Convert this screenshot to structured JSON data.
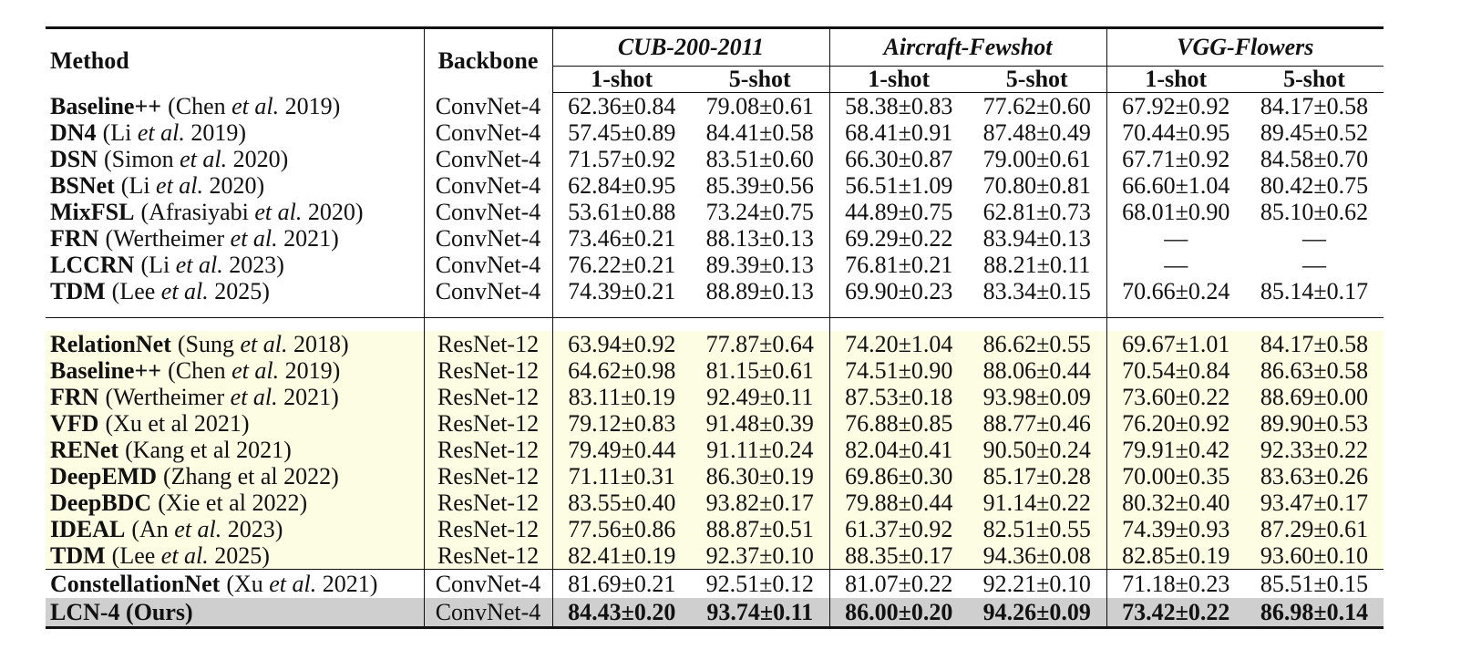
{
  "table": {
    "header": {
      "method": "Method",
      "backbone": "Backbone",
      "datasets": [
        {
          "name": "CUB-200-2011",
          "shots": [
            "1-shot",
            "5-shot"
          ]
        },
        {
          "name": "Aircraft-Fewshot",
          "shots": [
            "1-shot",
            "5-shot"
          ]
        },
        {
          "name": "VGG-Flowers",
          "shots": [
            "1-shot",
            "5-shot"
          ]
        }
      ]
    },
    "groups": [
      {
        "rows": [
          {
            "name": "Baseline++",
            "cite": [
              "(Chen ",
              "et al.",
              " 2019)"
            ],
            "backbone": "ConvNet-4",
            "values": [
              "62.36±0.84",
              "79.08±0.61",
              "58.38±0.83",
              "77.62±0.60",
              "67.92±0.92",
              "84.17±0.58"
            ]
          },
          {
            "name": "DN4",
            "cite": [
              "(Li ",
              "et al.",
              " 2019)"
            ],
            "backbone": "ConvNet-4",
            "values": [
              "57.45±0.89",
              "84.41±0.58",
              "68.41±0.91",
              "87.48±0.49",
              "70.44±0.95",
              "89.45±0.52"
            ]
          },
          {
            "name": "DSN",
            "cite": [
              "(Simon ",
              "et al.",
              " 2020)"
            ],
            "backbone": "ConvNet-4",
            "values": [
              "71.57±0.92",
              "83.51±0.60",
              "66.30±0.87",
              "79.00±0.61",
              "67.71±0.92",
              "84.58±0.70"
            ]
          },
          {
            "name": "BSNet",
            "cite": [
              "(Li ",
              "et al.",
              " 2020)"
            ],
            "backbone": "ConvNet-4",
            "values": [
              "62.84±0.95",
              "85.39±0.56",
              "56.51±1.09",
              "70.80±0.81",
              "66.60±1.04",
              "80.42±0.75"
            ]
          },
          {
            "name": "MixFSL",
            "cite": [
              "(Afrasiyabi ",
              "et al.",
              " 2020)"
            ],
            "backbone": "ConvNet-4",
            "values": [
              "53.61±0.88",
              "73.24±0.75",
              "44.89±0.75",
              "62.81±0.73",
              "68.01±0.90",
              "85.10±0.62"
            ]
          },
          {
            "name": "FRN",
            "cite": [
              "(Wertheimer ",
              "et al.",
              " 2021)"
            ],
            "backbone": "ConvNet-4",
            "values": [
              "73.46±0.21",
              "88.13±0.13",
              "69.29±0.22",
              "83.94±0.13",
              "—",
              "—"
            ]
          },
          {
            "name": "LCCRN",
            "cite": [
              "(Li ",
              "et al.",
              " 2023)"
            ],
            "backbone": "ConvNet-4",
            "values": [
              "76.22±0.21",
              "89.39±0.13",
              "76.81±0.21",
              "88.21±0.11",
              "—",
              "—"
            ]
          },
          {
            "name": "TDM",
            "cite": [
              "(Lee ",
              "et al.",
              " 2025)"
            ],
            "backbone": "ConvNet-4",
            "values": [
              "74.39±0.21",
              "88.89±0.13",
              "69.90±0.23",
              "83.34±0.15",
              "70.66±0.24",
              "85.14±0.17"
            ]
          }
        ]
      },
      {
        "rows": [
          {
            "name": "RelationNet",
            "cite": [
              "(Sung ",
              "et al.",
              " 2018)"
            ],
            "backbone": "ResNet-12",
            "values": [
              "63.94±0.92",
              "77.87±0.64",
              "74.20±1.04",
              "86.62±0.55",
              "69.67±1.01",
              "84.17±0.58"
            ]
          },
          {
            "name": "Baseline++",
            "cite": [
              "(Chen ",
              "et al.",
              " 2019)"
            ],
            "backbone": "ResNet-12",
            "values": [
              "64.62±0.98",
              "81.15±0.61",
              "74.51±0.90",
              "88.06±0.44",
              "70.54±0.84",
              "86.63±0.58"
            ]
          },
          {
            "name": "FRN",
            "cite": [
              "(Wertheimer ",
              "et al.",
              " 2021)"
            ],
            "backbone": "ResNet-12",
            "values": [
              "83.11±0.19",
              "92.49±0.11",
              "87.53±0.18",
              "93.98±0.09",
              "73.60±0.22",
              "88.69±0.00"
            ]
          },
          {
            "name": "VFD",
            "cite": [
              "(Xu et al 2021)"
            ],
            "backbone": "ResNet-12",
            "values": [
              "79.12±0.83",
              "91.48±0.39",
              "76.88±0.85",
              "88.77±0.46",
              "76.20±0.92",
              "89.90±0.53"
            ]
          },
          {
            "name": "RENet",
            "cite": [
              "(Kang et al 2021)"
            ],
            "backbone": "ResNet-12",
            "values": [
              "79.49±0.44",
              "91.11±0.24",
              "82.04±0.41",
              "90.50±0.24",
              "79.91±0.42",
              "92.33±0.22"
            ]
          },
          {
            "name": "DeepEMD",
            "cite": [
              "(Zhang et al 2022)"
            ],
            "backbone": "ResNet-12",
            "values": [
              "71.11±0.31",
              "86.30±0.19",
              "69.86±0.30",
              "85.17±0.28",
              "70.00±0.35",
              "83.63±0.26"
            ]
          },
          {
            "name": "DeepBDC",
            "cite": [
              "(Xie et al 2022)"
            ],
            "backbone": "ResNet-12",
            "values": [
              "83.55±0.40",
              "93.82±0.17",
              "79.88±0.44",
              "91.14±0.22",
              "80.32±0.40",
              "93.47±0.17"
            ]
          },
          {
            "name": "IDEAL",
            "cite": [
              "(An ",
              "et al.",
              " 2023)"
            ],
            "backbone": "ResNet-12",
            "values": [
              "77.56±0.86",
              "88.87±0.51",
              "61.37±0.92",
              "82.51±0.55",
              "74.39±0.93",
              "87.29±0.61"
            ]
          },
          {
            "name": "TDM",
            "cite": [
              "(Lee ",
              "et al.",
              " 2025)"
            ],
            "backbone": "ResNet-12",
            "values": [
              "82.41±0.19",
              "92.37±0.10",
              "88.35±0.17",
              "94.36±0.08",
              "82.85±0.19",
              "93.60±0.10"
            ]
          }
        ]
      },
      {
        "rows": [
          {
            "name": "ConstellationNet",
            "cite": [
              "(Xu ",
              "et al.",
              " 2021)"
            ],
            "backbone": "ConvNet-4",
            "values": [
              "81.69±0.21",
              "92.51±0.12",
              "81.07±0.22",
              "92.21±0.10",
              "71.18±0.23",
              "85.51±0.15"
            ]
          },
          {
            "name": "LCN-4 (Ours)",
            "backbone": "ConvNet-4",
            "values": [
              "84.43±0.20",
              "93.74±0.11",
              "86.00±0.20",
              "94.26±0.09",
              "73.42±0.22",
              "86.98±0.14"
            ]
          }
        ]
      }
    ]
  }
}
